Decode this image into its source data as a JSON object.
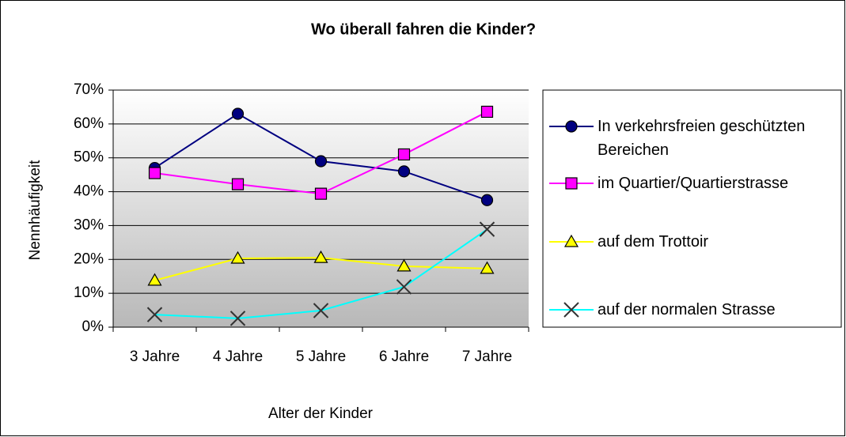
{
  "chart_data": {
    "type": "line",
    "title": "Wo überall fahren die Kinder?",
    "xlabel": "Alter der Kinder",
    "ylabel": "Nennhäufigkeit",
    "categories": [
      "3 Jahre",
      "4 Jahre",
      "5 Jahre",
      "6 Jahre",
      "7 Jahre"
    ],
    "ylim": [
      0,
      70
    ],
    "yticks": [
      {
        "value": 0,
        "label": "0%"
      },
      {
        "value": 10,
        "label": "10%"
      },
      {
        "value": 20,
        "label": "20%"
      },
      {
        "value": 30,
        "label": "30%"
      },
      {
        "value": 40,
        "label": "40%"
      },
      {
        "value": 50,
        "label": "50%"
      },
      {
        "value": 60,
        "label": "60%"
      },
      {
        "value": 70,
        "label": "70%"
      }
    ],
    "grid": true,
    "legend": "right",
    "series": [
      {
        "name": "In verkehrsfreien geschützten Bereichen",
        "color": "#000080",
        "marker": "circle",
        "marker_color": "#000080",
        "values": [
          47,
          63,
          49,
          46,
          37.5
        ]
      },
      {
        "name": "im Quartier/Quartierstrasse",
        "color": "#ff00ff",
        "marker": "square",
        "marker_color": "#ff00ff",
        "values": [
          45.5,
          42.2,
          39.4,
          51,
          63.6
        ]
      },
      {
        "name": "auf dem Trottoir",
        "color": "#ffff00",
        "marker": "triangle",
        "marker_color": "#ffff00",
        "values": [
          13.8,
          20.3,
          20.5,
          18,
          17.3
        ]
      },
      {
        "name": "auf der normalen Strasse",
        "color": "#00ffff",
        "marker": "x",
        "marker_color": "#333333",
        "values": [
          3.7,
          2.6,
          4.9,
          11.9,
          28.9
        ]
      }
    ]
  }
}
